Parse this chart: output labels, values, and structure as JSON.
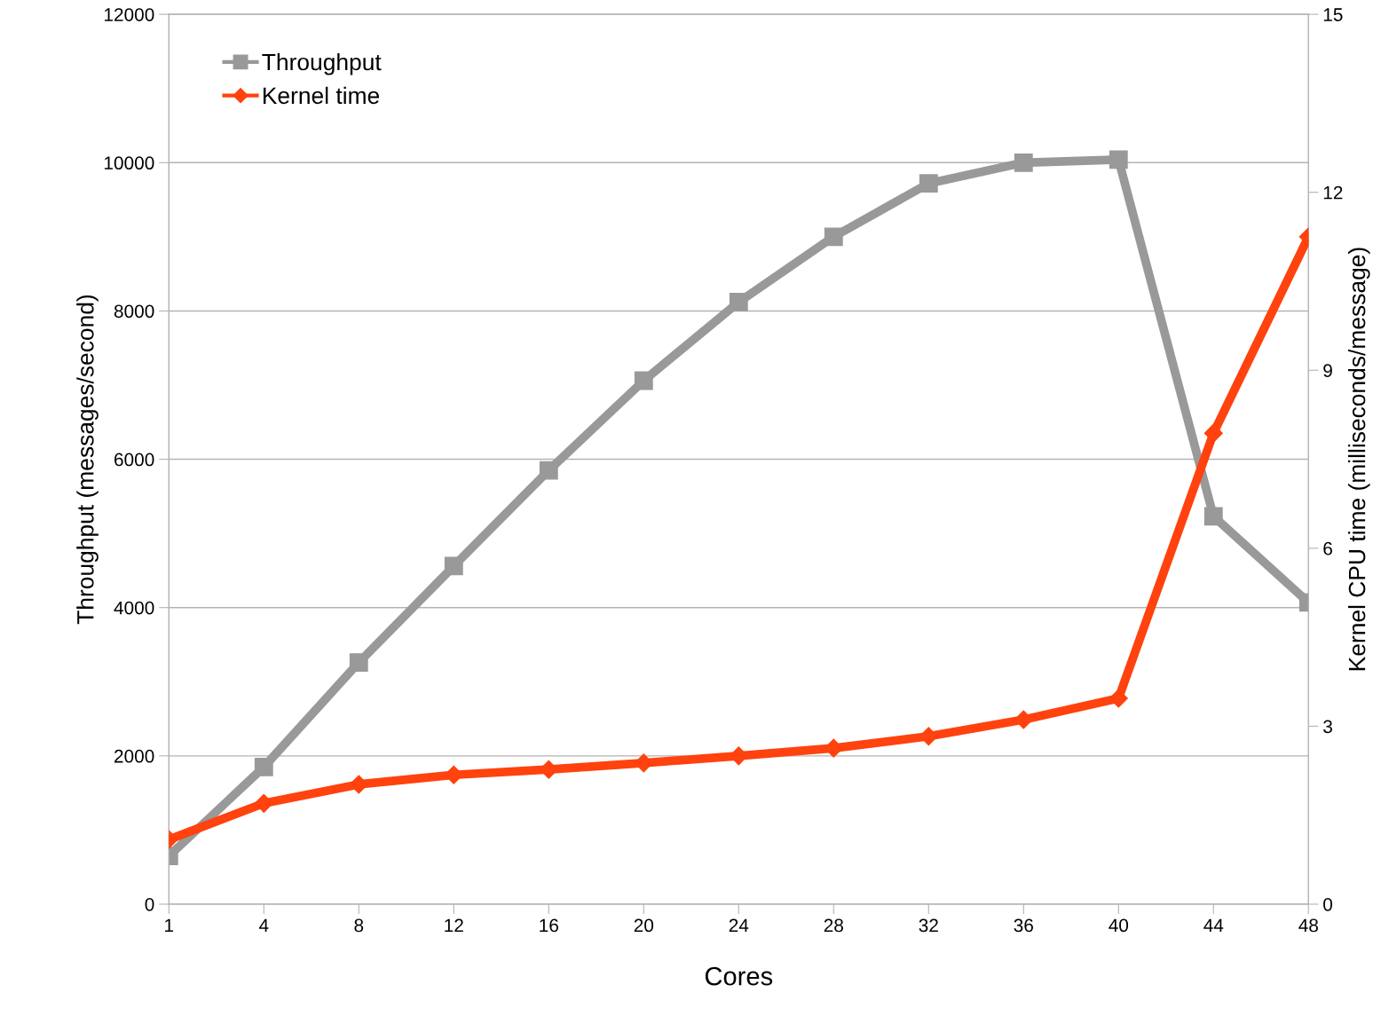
{
  "chart_data": {
    "type": "line",
    "xlabel": "Cores",
    "ylabel": "Throughput (messages/second)",
    "y2label": "Kernel CPU time (milliseconds/message)",
    "categories": [
      "1",
      "4",
      "8",
      "12",
      "16",
      "20",
      "24",
      "28",
      "32",
      "36",
      "40",
      "44",
      "48"
    ],
    "series": [
      {
        "name": "Throughput",
        "color": "#999999",
        "marker": "square",
        "values": [
          650,
          1850,
          3260,
          4560,
          5850,
          7060,
          8120,
          9000,
          9720,
          10000,
          10040,
          5230,
          4070
        ]
      },
      {
        "name": "Kernel time",
        "color": "#ff420e",
        "marker": "diamond",
        "axis": "y2",
        "values": [
          1.09,
          1.7,
          2.02,
          2.18,
          2.27,
          2.38,
          2.5,
          2.63,
          2.83,
          3.11,
          3.47,
          7.94,
          11.25
        ]
      }
    ],
    "ylim": [
      0,
      12000
    ],
    "yticks": [
      0,
      2000,
      4000,
      6000,
      8000,
      10000,
      12000
    ],
    "y2lim": [
      0,
      15
    ],
    "y2ticks": [
      0,
      3,
      6,
      9,
      12,
      15
    ],
    "grid": "y",
    "legend": "top left",
    "line_style": "solid"
  }
}
